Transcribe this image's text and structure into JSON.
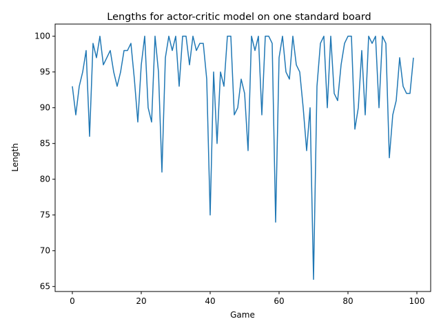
{
  "chart_data": {
    "type": "line",
    "title": "Lengths for actor-critic model on one standard board",
    "xlabel": "Game",
    "ylabel": "Length",
    "xlim": [
      -5,
      104
    ],
    "ylim": [
      64.3,
      101.7
    ],
    "xticks": [
      0,
      20,
      40,
      60,
      80,
      100
    ],
    "yticks": [
      65,
      70,
      75,
      80,
      85,
      90,
      95,
      100
    ],
    "grid": false,
    "series_color": "#1f77b4",
    "series": [
      {
        "x": [
          0,
          1,
          2,
          3,
          4,
          5,
          6,
          7,
          8,
          9,
          10,
          11,
          12,
          13,
          14,
          15,
          16,
          17,
          18,
          19,
          20,
          21,
          22,
          23,
          24,
          25,
          26,
          27,
          28,
          29,
          30,
          31,
          32,
          33,
          34,
          35,
          36,
          37,
          38,
          39,
          40,
          41,
          42,
          43,
          44,
          45,
          46,
          47,
          48,
          49,
          50,
          51,
          52,
          53,
          54,
          55,
          56,
          57,
          58,
          59,
          60,
          61,
          62,
          63,
          64,
          65,
          66,
          67,
          68,
          69,
          70,
          71,
          72,
          73,
          74,
          75,
          76,
          77,
          78,
          79,
          80,
          81,
          82,
          83,
          84,
          85,
          86,
          87,
          88,
          89,
          90,
          91,
          92,
          93,
          94,
          95,
          96,
          97,
          98,
          99
        ],
        "values": [
          93,
          89,
          93,
          95,
          98,
          86,
          99,
          97,
          100,
          96,
          97,
          98,
          95,
          93,
          95,
          98,
          98,
          99,
          94,
          88,
          96,
          100,
          90,
          88,
          100,
          95,
          81,
          97,
          100,
          98,
          100,
          93,
          100,
          100,
          96,
          100,
          98,
          99,
          99,
          94,
          75,
          95,
          85,
          95,
          93,
          100,
          100,
          89,
          90,
          94,
          92,
          84,
          100,
          98,
          100,
          89,
          100,
          100,
          99,
          74,
          97,
          100,
          95,
          94,
          100,
          96,
          95,
          90,
          84,
          90,
          66,
          93,
          99,
          100,
          90,
          100,
          92,
          91,
          96,
          99,
          100,
          100,
          87,
          90,
          98,
          89,
          100,
          99,
          100,
          90,
          100,
          99,
          83,
          89,
          91,
          97,
          93,
          92,
          92,
          97
        ]
      }
    ]
  }
}
